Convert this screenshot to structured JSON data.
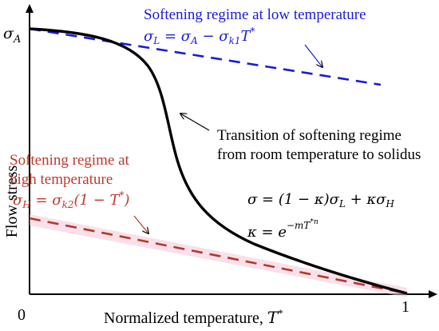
{
  "axes": {
    "y_label": "Flow stress",
    "x_label_text": "Normalized temperature, ",
    "x_label_symbol": "T",
    "x_label_sup": "*",
    "origin_label": "0",
    "x_end_label": "1",
    "y_tick_symbol": "σ",
    "y_tick_sub": "A"
  },
  "annotations": {
    "low": {
      "title": "Softening regime at low temperature",
      "eq": {
        "lhs": "σ",
        "lhs_sub": "L",
        "mid": " = σ",
        "mid_sub": "A",
        "minus": " − σ",
        "k_sub": "k1",
        "t": "T",
        "t_sup": "*"
      },
      "color": "#1a1adc"
    },
    "transition": {
      "line1": "Transition of softening regime",
      "line2": "from room temperature to solidus"
    },
    "high": {
      "line1": "Softening regime at",
      "line2": "high temperature",
      "eq": {
        "lhs": "σ",
        "lhs_sub": "H",
        "mid": " = σ",
        "mid_sub": "k2",
        "rest": "(1 − ",
        "t": "T",
        "t_sup": "*",
        "close": ")"
      },
      "color": "#c0392b"
    },
    "mix_eq": {
      "part1": "σ = (1 − κ)σ",
      "sub1": "L",
      "part2": " + κσ",
      "sub2": "H"
    },
    "kappa_eq": {
      "lhs": "κ = ",
      "base": "e",
      "exp": "−mT",
      "exp_sup": "*n"
    }
  },
  "colors": {
    "axis": "#000000",
    "main_curve": "#000000",
    "low_line": "#1a1adc",
    "high_line": "#b23a2a",
    "high_band": "#f4c6d8"
  }
}
